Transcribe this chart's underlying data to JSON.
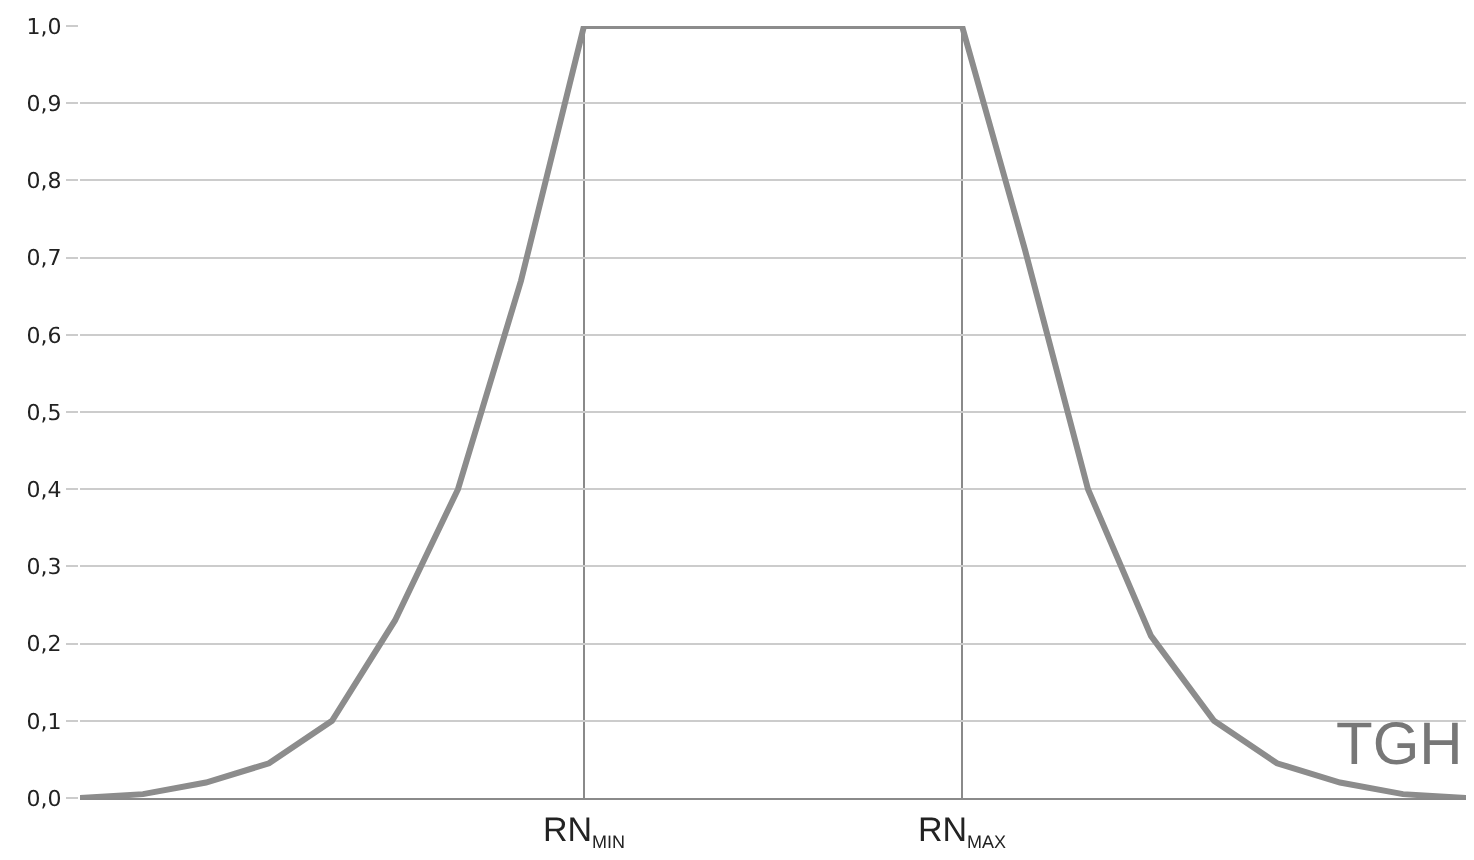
{
  "chart_data": {
    "type": "line",
    "xlabel": "TGH",
    "categories": [
      null,
      null,
      null,
      null,
      null,
      null,
      null,
      null,
      "RN$_{MIN}$",
      null,
      null,
      null,
      null,
      null,
      "RN$_{MAX}$",
      null,
      null,
      null,
      null,
      null,
      null,
      null,
      null
    ],
    "series": [
      {
        "color": "#8c8c8c",
        "values": [
          0,
          0.005,
          0.02,
          0.045,
          0.1,
          0.23,
          0.4,
          0.67,
          1.0,
          1.0,
          1.0,
          1.0,
          1.0,
          1.0,
          1.0,
          0.71,
          0.4,
          0.21,
          0.1,
          0.045,
          0.02,
          0.005,
          0
        ]
      }
    ],
    "ylim": [
      0,
      1
    ],
    "yticks": [
      {
        "value": 0,
        "label": "0,0"
      },
      {
        "value": 0.1,
        "label": "0,1"
      },
      {
        "value": 0.2,
        "label": "0,2"
      },
      {
        "value": 0.3,
        "label": "0,3"
      },
      {
        "value": 0.4,
        "label": "0,4"
      },
      {
        "value": 0.5,
        "label": "0,5"
      },
      {
        "value": 0.6,
        "label": "0,6"
      },
      {
        "value": 0.7,
        "label": "0,7"
      },
      {
        "value": 0.8,
        "label": "0,8"
      },
      {
        "value": 0.9,
        "label": "0,9"
      },
      {
        "value": 1,
        "label": "1,0"
      }
    ],
    "grid": true,
    "marker": "none",
    "line_style": "solid"
  }
}
